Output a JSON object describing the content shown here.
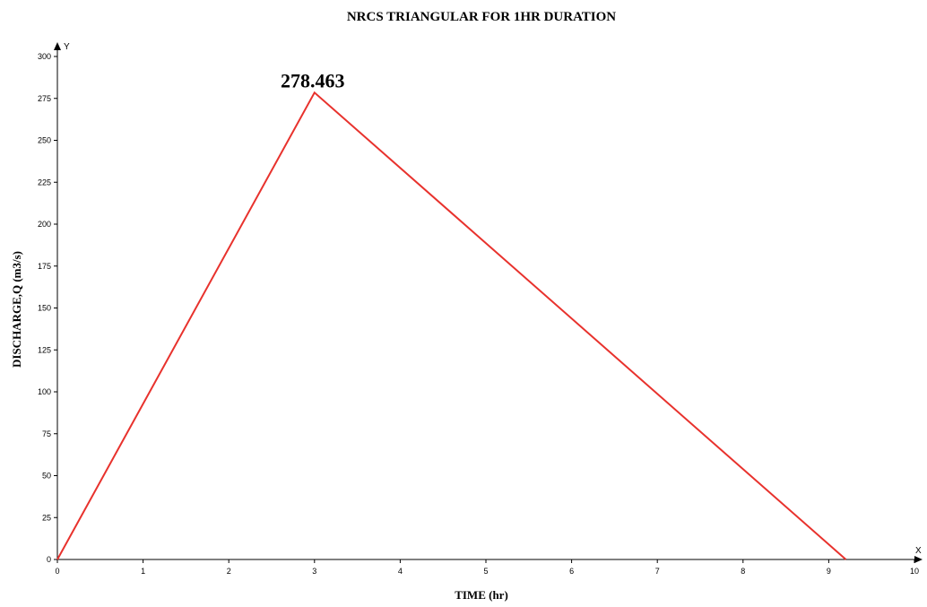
{
  "chart_data": {
    "type": "line",
    "title": "NRCS TRIANGULAR FOR 1HR DURATION",
    "xlabel": "TIME (hr)",
    "ylabel": "DISCHARGE,Q (m3/s)",
    "x_axis_letter": "X",
    "y_axis_letter": "Y",
    "xlim": [
      0,
      10
    ],
    "ylim": [
      0,
      300
    ],
    "x_ticks": [
      0,
      1,
      2,
      3,
      4,
      5,
      6,
      7,
      8,
      9,
      10
    ],
    "y_ticks": [
      0,
      25,
      50,
      75,
      100,
      125,
      150,
      175,
      200,
      225,
      250,
      275,
      300
    ],
    "grid": false,
    "series": [
      {
        "x": [
          0,
          3,
          9.2
        ],
        "y": [
          0,
          278.463,
          0
        ],
        "color": "#e8322d"
      }
    ],
    "annotations": [
      {
        "text": "278.463",
        "x": 3,
        "y": 278.463
      }
    ]
  }
}
